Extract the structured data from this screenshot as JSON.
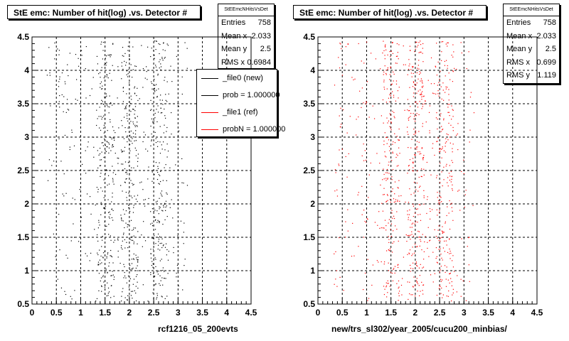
{
  "panels": [
    {
      "title": "StE emc: Number of hit(log) .vs. Detector #",
      "xtitle": "rcf1216_05_200evts",
      "stats": {
        "name": "StEEmcNHitsVsDet",
        "rows": [
          {
            "label": "Entries",
            "value": "758"
          },
          {
            "label": "Mean x",
            "value": "2.033"
          },
          {
            "label": "Mean y",
            "value": "2.5"
          },
          {
            "label": "RMS x",
            "value": "0.6984"
          }
        ]
      },
      "legend": [
        {
          "label": "_file0 (new)",
          "color": "#000000"
        },
        {
          "label": "prob = 1.000000",
          "color": "#000000"
        },
        {
          "label": "_file1 (ref)",
          "color": "#ff0000"
        },
        {
          "label": "probN = 1.000000",
          "color": "#ff0000"
        }
      ]
    },
    {
      "title": "StE emc: Number of hit(log) .vs. Detector #",
      "xtitle": "new/trs_sl302/year_2005/cucu200_minbias/",
      "stats": {
        "name": "StEEmcNHitsVsDet",
        "rows": [
          {
            "label": "Entries",
            "value": "758"
          },
          {
            "label": "Mean x",
            "value": "2.033"
          },
          {
            "label": "Mean y",
            "value": "2.5"
          },
          {
            "label": "RMS x",
            "value": "0.699"
          },
          {
            "label": "RMS y",
            "value": "1.119"
          }
        ]
      }
    }
  ],
  "chart_data": [
    {
      "type": "scatter",
      "title": "StE emc: Number of hit(log) .vs. Detector #",
      "xlabel": "rcf1216_05_200evts",
      "xlim": [
        0,
        4.5
      ],
      "ylim": [
        0.5,
        4.5
      ],
      "xticks": [
        "0",
        "0.5",
        "1",
        "1.5",
        "2",
        "2.5",
        "3",
        "3.5",
        "4",
        "4.5"
      ],
      "yticks": [
        "0.5",
        "1",
        "1.5",
        "2",
        "2.5",
        "3",
        "3.5",
        "4",
        "4.5"
      ],
      "grid": true,
      "series": [
        {
          "name": "_file0 (new)",
          "color": "#000000",
          "x_range": [
            0.3,
            3.2
          ],
          "y_range": [
            0.55,
            4.45
          ],
          "density_peak_x": [
            1.5,
            2.0,
            2.6
          ]
        }
      ]
    },
    {
      "type": "scatter",
      "title": "StE emc: Number of hit(log) .vs. Detector #",
      "xlabel": "new/trs_sl302/year_2005/cucu200_minbias/",
      "xlim": [
        0,
        4.5
      ],
      "ylim": [
        0.5,
        4.5
      ],
      "xticks": [
        "0",
        "0.5",
        "1",
        "1.5",
        "2",
        "2.5",
        "3",
        "3.5",
        "4",
        "4.5"
      ],
      "yticks": [
        "0.5",
        "1",
        "1.5",
        "2",
        "2.5",
        "3",
        "3.5",
        "4",
        "4.5"
      ],
      "grid": true,
      "series": [
        {
          "name": "_file1 (ref)",
          "color": "#ff0000",
          "x_range": [
            0.3,
            3.2
          ],
          "y_range": [
            0.55,
            4.45
          ],
          "density_peak_x": [
            1.5,
            2.0,
            2.6
          ]
        }
      ]
    }
  ]
}
